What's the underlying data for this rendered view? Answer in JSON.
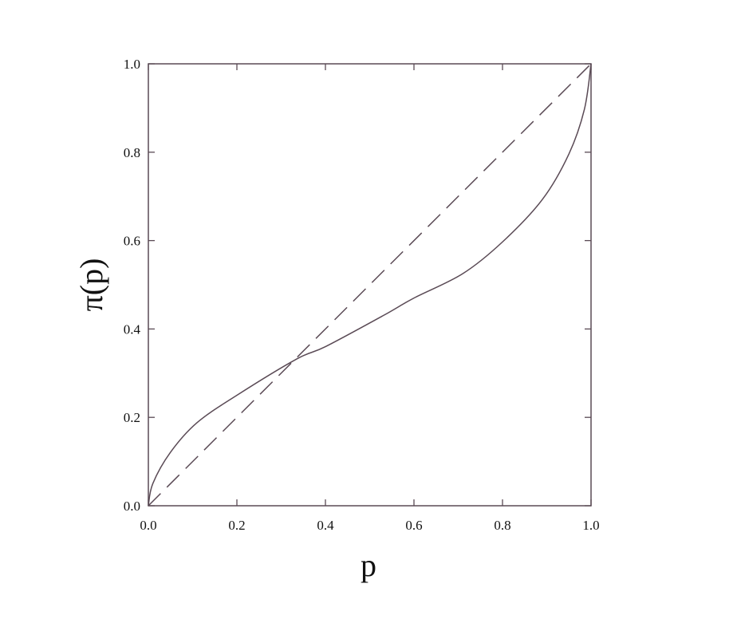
{
  "chart_data": {
    "type": "line",
    "title": "",
    "xlabel": "p",
    "ylabel": "π(p)",
    "xlim": [
      0,
      1
    ],
    "ylim": [
      0,
      1
    ],
    "grid": false,
    "x_ticks": [
      "0.0",
      "0.2",
      "0.4",
      "0.6",
      "0.8",
      "1.0"
    ],
    "y_ticks": [
      "0.0",
      "0.2",
      "0.4",
      "0.6",
      "0.8",
      "1.0"
    ],
    "series": [
      {
        "style": "solid",
        "color": "#5a4a55",
        "points": [
          [
            0,
            0
          ],
          [
            0.01,
            0.05
          ],
          [
            0.05,
            0.121
          ],
          [
            0.11,
            0.188
          ],
          [
            0.2,
            0.25
          ],
          [
            0.335,
            0.332
          ],
          [
            0.4,
            0.36
          ],
          [
            0.53,
            0.43
          ],
          [
            0.6,
            0.47
          ],
          [
            0.71,
            0.525
          ],
          [
            0.8,
            0.597
          ],
          [
            0.89,
            0.693
          ],
          [
            0.95,
            0.796
          ],
          [
            0.985,
            0.897
          ],
          [
            1,
            1
          ]
        ]
      },
      {
        "style": "dashed",
        "color": "#5a4a55",
        "points": [
          [
            0,
            0
          ],
          [
            1,
            1
          ]
        ]
      }
    ]
  }
}
